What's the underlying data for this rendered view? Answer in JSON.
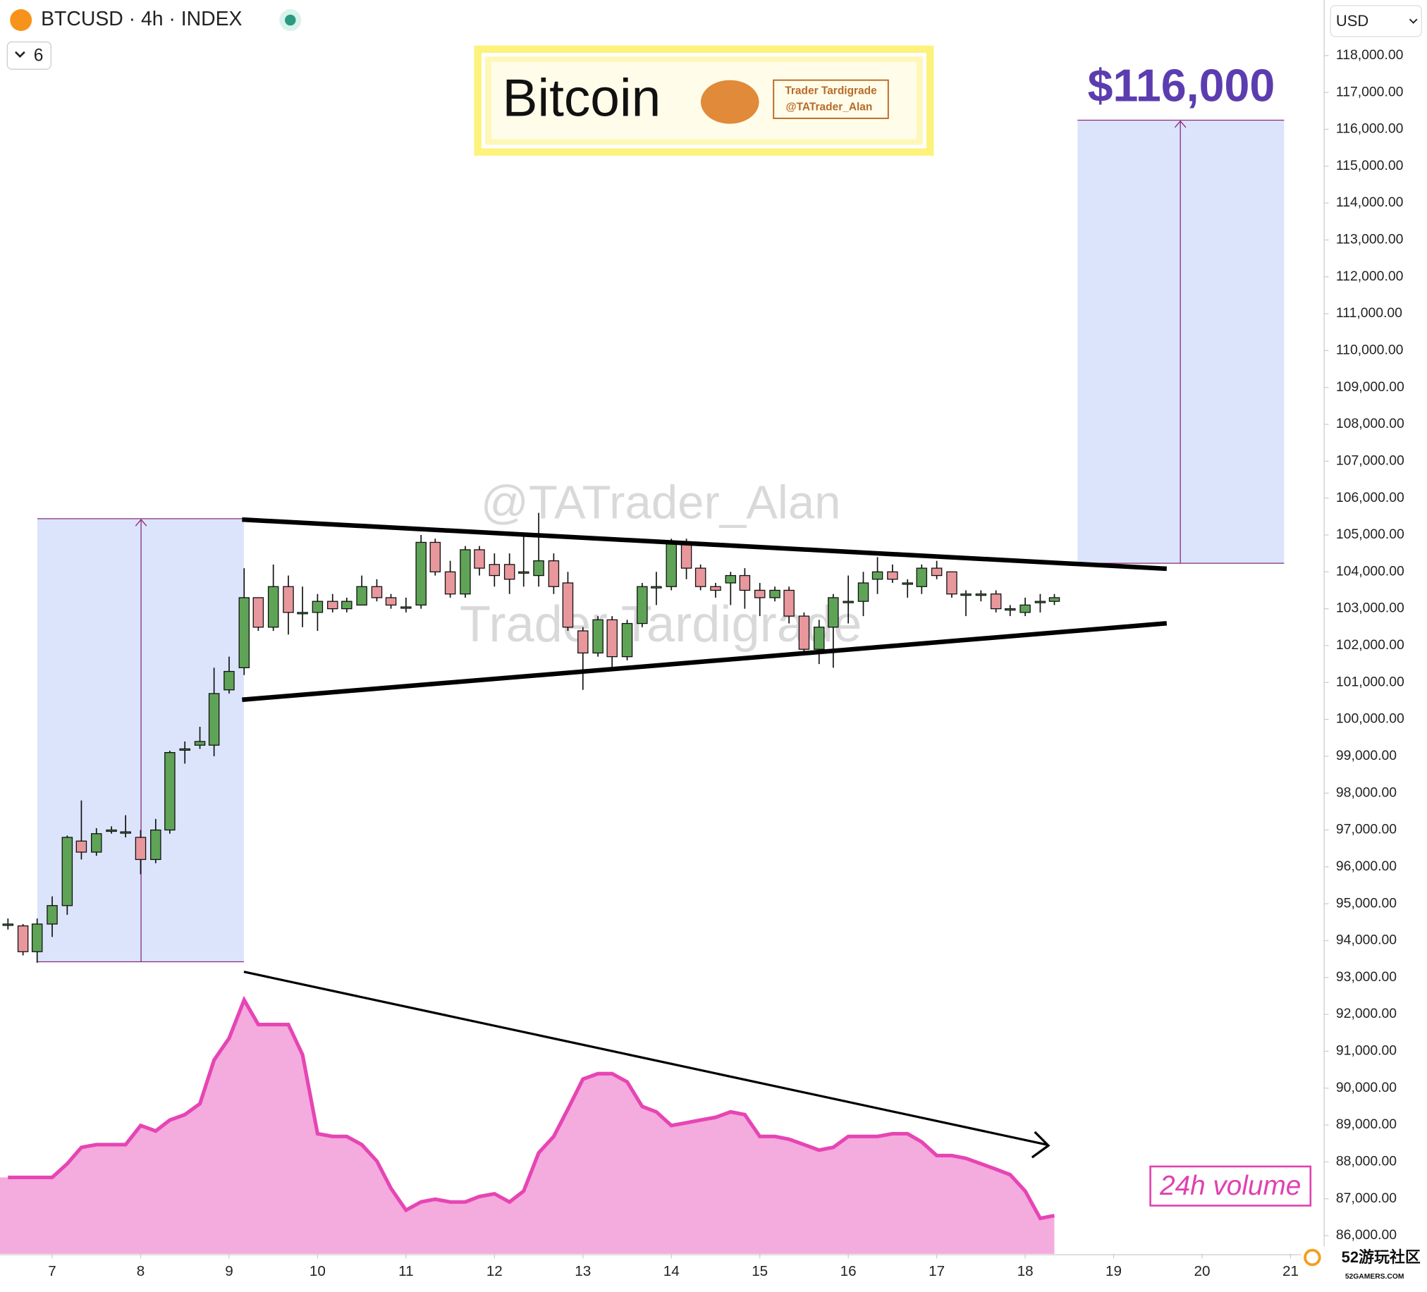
{
  "header": {
    "symbol": "BTCUSD · 4h · INDEX",
    "interval_count": "6",
    "currency": "USD"
  },
  "banner": {
    "title": "Bitcoin",
    "author": "Trader Tardigrade",
    "handle": "@TATrader_Alan"
  },
  "watermark": {
    "handle": "@TATrader_Alan",
    "author": "Trader Tardigrade"
  },
  "site_logo": {
    "name": "52游玩社区",
    "url": "52GAMERS.COM"
  },
  "chart_data": {
    "type": "candlestick",
    "annotations": {
      "target": "$116,000",
      "volume_label": "24h volume"
    },
    "x": [
      6.5,
      6.67,
      6.83,
      7,
      7.17,
      7.33,
      7.5,
      7.67,
      7.83,
      8,
      8.17,
      8.33,
      8.5,
      8.67,
      8.83,
      9,
      9.17,
      9.33,
      9.5,
      9.67,
      9.83,
      10,
      10.17,
      10.33,
      10.5,
      10.67,
      10.83,
      11,
      11.17,
      11.33,
      11.5,
      11.67,
      11.83,
      12,
      12.17,
      12.33,
      12.5,
      12.67,
      12.83,
      13,
      13.17,
      13.33,
      13.5,
      13.67,
      13.83,
      14,
      14.17,
      14.33,
      14.5,
      14.67,
      14.83,
      15,
      15.17,
      15.33,
      15.5,
      15.67,
      15.83,
      16,
      16.17,
      16.33,
      16.5,
      16.67,
      16.83,
      17,
      17.17,
      17.33,
      17.5,
      17.67,
      17.83,
      18,
      18.17,
      18.33
    ],
    "open": [
      94450,
      94400,
      93700,
      94450,
      94950,
      96700,
      96400,
      97000,
      96950,
      96800,
      96200,
      97000,
      99200,
      99300,
      99300,
      100800,
      101400,
      103300,
      102500,
      103600,
      102900,
      102900,
      103200,
      103000,
      103100,
      103600,
      103300,
      103050,
      103100,
      104800,
      104000,
      103400,
      104600,
      104200,
      104200,
      104000,
      103900,
      104300,
      103700,
      102400,
      101800,
      102700,
      101700,
      102600,
      103600,
      103600,
      104800,
      104100,
      103600,
      103700,
      103900,
      103500,
      103300,
      103500,
      102800,
      101900,
      102500,
      103200,
      103200,
      103800,
      104000,
      103700,
      103600,
      104100,
      104000,
      103400,
      103400,
      103400,
      103000,
      102900,
      103200,
      103200
    ],
    "high": [
      94600,
      94450,
      94600,
      95200,
      96850,
      97800,
      97050,
      97100,
      97400,
      97000,
      97300,
      99150,
      99400,
      99800,
      101400,
      101700,
      104100,
      103300,
      104200,
      103900,
      103600,
      103400,
      103400,
      103300,
      103900,
      103800,
      103400,
      103300,
      105000,
      104900,
      104300,
      104700,
      104700,
      104500,
      104500,
      105000,
      105600,
      104500,
      104000,
      102500,
      102800,
      102800,
      102700,
      103700,
      104000,
      104900,
      104900,
      104200,
      103700,
      104000,
      104100,
      103700,
      103600,
      103600,
      102900,
      102700,
      103400,
      103900,
      104000,
      104400,
      104200,
      103800,
      104200,
      104300,
      104000,
      103500,
      103500,
      103500,
      103100,
      103300,
      103400,
      103400
    ],
    "low": [
      94300,
      93600,
      93400,
      94100,
      94700,
      96200,
      96300,
      96900,
      96800,
      95800,
      96100,
      96900,
      98800,
      99200,
      99000,
      100700,
      101200,
      102400,
      102400,
      102300,
      102500,
      102400,
      102900,
      102900,
      103100,
      103200,
      103000,
      102900,
      103000,
      103900,
      103300,
      103300,
      103900,
      103600,
      103400,
      103600,
      103600,
      103400,
      102400,
      100800,
      101700,
      101400,
      101600,
      102500,
      103100,
      103500,
      103800,
      103500,
      103300,
      103100,
      103000,
      102800,
      103200,
      102600,
      101800,
      101500,
      101400,
      102600,
      102800,
      103400,
      103700,
      103300,
      103400,
      103800,
      103300,
      102800,
      103200,
      102900,
      102800,
      102800,
      102900,
      103100
    ],
    "close": [
      94450,
      93700,
      94450,
      94950,
      96800,
      96400,
      96900,
      97000,
      96950,
      96200,
      97000,
      99100,
      99200,
      99400,
      100700,
      101300,
      103300,
      102500,
      103600,
      102900,
      102900,
      103200,
      103000,
      103200,
      103600,
      103300,
      103100,
      103050,
      104800,
      104000,
      103400,
      104600,
      104100,
      103900,
      103800,
      104000,
      104300,
      103600,
      102500,
      101800,
      102700,
      101700,
      102600,
      103600,
      103600,
      104800,
      104100,
      103600,
      103500,
      103900,
      103500,
      103300,
      103500,
      102800,
      101900,
      102500,
      103300,
      103200,
      103700,
      104000,
      103800,
      103700,
      104100,
      103900,
      103400,
      103400,
      103400,
      103000,
      103000,
      103100,
      103200,
      103300
    ],
    "volume": [
      28,
      28,
      28,
      28,
      33,
      39,
      40,
      40,
      40,
      47,
      45,
      49,
      51,
      55,
      71,
      79,
      93,
      84,
      84,
      84,
      73,
      44,
      43,
      43,
      40,
      34,
      24,
      16,
      19,
      20,
      19,
      19,
      21,
      22,
      19,
      23,
      37,
      43,
      53,
      64,
      66,
      66,
      63,
      54,
      52,
      47,
      48,
      49,
      50,
      52,
      51,
      43,
      43,
      42,
      40,
      38,
      39,
      43,
      43,
      43,
      44,
      44,
      41,
      36,
      36,
      35,
      33,
      31,
      29,
      23,
      13,
      14
    ],
    "up_color": "#5fa357",
    "down_color": "#e8979c",
    "volume_color": "#e645b4",
    "xlim": [
      6.41,
      21.38
    ],
    "xticks": [
      7,
      8,
      9,
      10,
      11,
      12,
      13,
      14,
      15,
      16,
      17,
      18,
      19,
      20,
      21
    ],
    "ylim": [
      85507,
      119505
    ],
    "yticks": [
      {
        "value": 86000,
        "label": "86,000.00"
      },
      {
        "value": 87000,
        "label": "87,000.00"
      },
      {
        "value": 88000,
        "label": "88,000.00"
      },
      {
        "value": 89000,
        "label": "89,000.00"
      },
      {
        "value": 90000,
        "label": "90,000.00"
      },
      {
        "value": 91000,
        "label": "91,000.00"
      },
      {
        "value": 92000,
        "label": "92,000.00"
      },
      {
        "value": 93000,
        "label": "93,000.00"
      },
      {
        "value": 94000,
        "label": "94,000.00"
      },
      {
        "value": 95000,
        "label": "95,000.00"
      },
      {
        "value": 96000,
        "label": "96,000.00"
      },
      {
        "value": 97000,
        "label": "97,000.00"
      },
      {
        "value": 98000,
        "label": "98,000.00"
      },
      {
        "value": 99000,
        "label": "99,000.00"
      },
      {
        "value": 100000,
        "label": "100,000.00"
      },
      {
        "value": 101000,
        "label": "101,000.00"
      },
      {
        "value": 102000,
        "label": "102,000.00"
      },
      {
        "value": 103000,
        "label": "103,000.00"
      },
      {
        "value": 104000,
        "label": "104,000.00"
      },
      {
        "value": 105000,
        "label": "105,000.00"
      },
      {
        "value": 106000,
        "label": "106,000.00"
      },
      {
        "value": 107000,
        "label": "107,000.00"
      },
      {
        "value": 108000,
        "label": "108,000.00"
      },
      {
        "value": 109000,
        "label": "109,000.00"
      },
      {
        "value": 110000,
        "label": "110,000.00"
      },
      {
        "value": 111000,
        "label": "111,000.00"
      },
      {
        "value": 112000,
        "label": "112,000.00"
      },
      {
        "value": 113000,
        "label": "113,000.00"
      },
      {
        "value": 114000,
        "label": "114,000.00"
      },
      {
        "value": 115000,
        "label": "115,000.00"
      },
      {
        "value": 116000,
        "label": "116,000.00"
      },
      {
        "value": 117000,
        "label": "117,000.00"
      },
      {
        "value": 118000,
        "label": "118,000.00"
      }
    ]
  }
}
